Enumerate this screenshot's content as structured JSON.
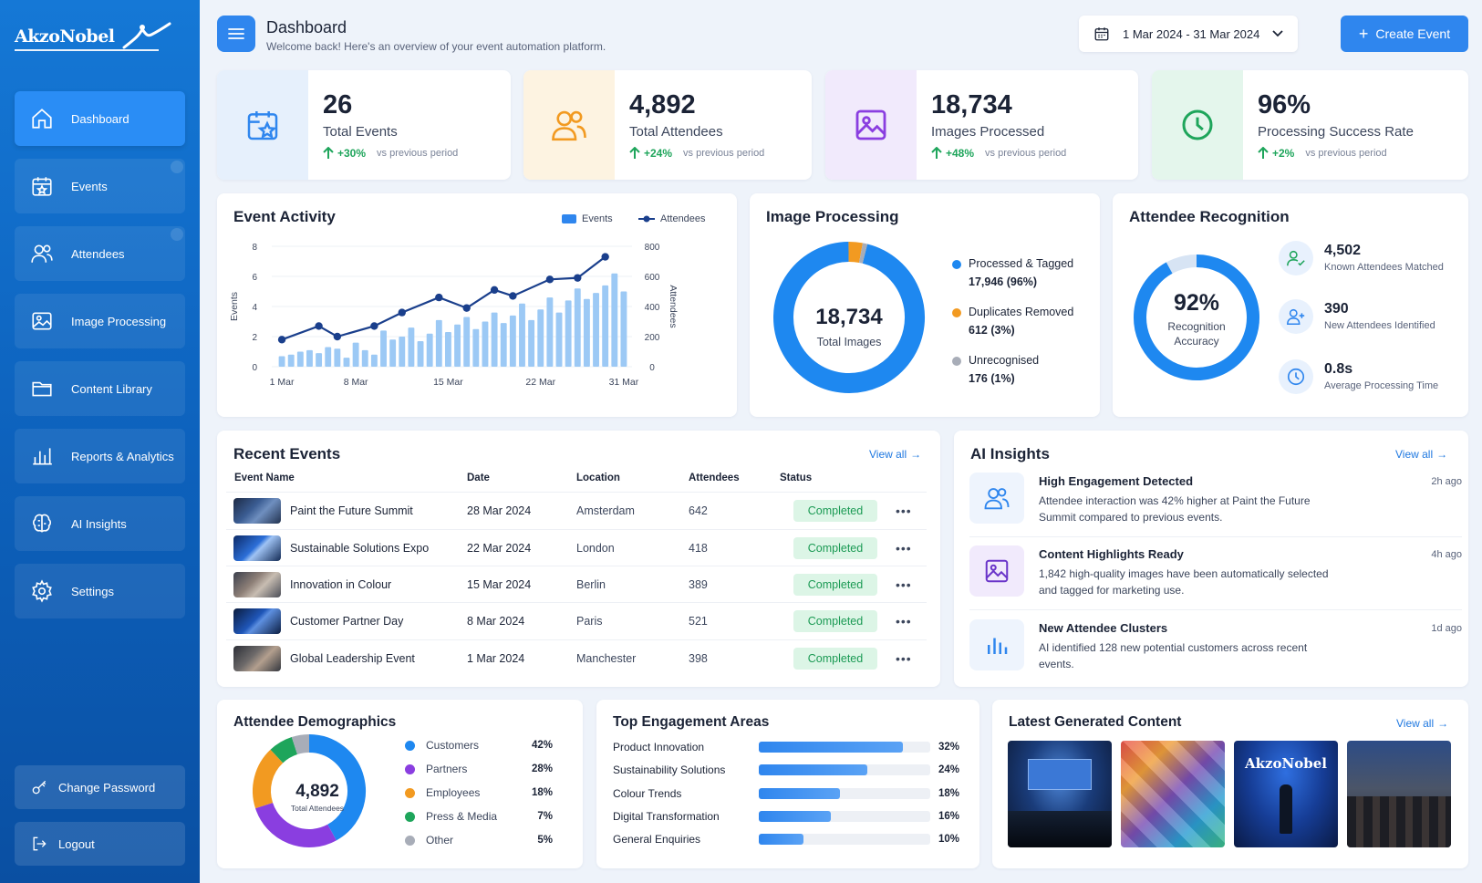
{
  "brand": {
    "name": "AkzoNobel"
  },
  "sidebar": {
    "items": [
      {
        "label": "Dashboard",
        "icon": "home-icon",
        "active": true
      },
      {
        "label": "Events",
        "icon": "calendar-star-icon"
      },
      {
        "label": "Attendees",
        "icon": "users-icon"
      },
      {
        "label": "Image Processing",
        "icon": "image-icon"
      },
      {
        "label": "Content Library",
        "icon": "folder-icon"
      },
      {
        "label": "Reports & Analytics",
        "icon": "bar-chart-icon"
      },
      {
        "label": "AI Insights",
        "icon": "brain-icon"
      },
      {
        "label": "Settings",
        "icon": "gear-icon"
      }
    ],
    "change_password": "Change Password",
    "logout": "Logout"
  },
  "header": {
    "title": "Dashboard",
    "subtitle": "Welcome back! Here's an overview of your event automation platform.",
    "date_range": "1 Mar 2024 - 31 Mar 2024",
    "create_label": "Create Event"
  },
  "stats": [
    {
      "value": "26",
      "label": "Total Events",
      "change": "+30%",
      "compare": "vs previous period",
      "icon": "calendar-star-icon",
      "bg": "#e6f0fc",
      "color": "#2f86ee"
    },
    {
      "value": "4,892",
      "label": "Total Attendees",
      "change": "+24%",
      "compare": "vs previous period",
      "icon": "users-icon",
      "bg": "#fdf3e1",
      "color": "#f29a21"
    },
    {
      "value": "18,734",
      "label": "Images Processed",
      "change": "+48%",
      "compare": "vs previous period",
      "icon": "image-icon",
      "bg": "#f1eafc",
      "color": "#8a3ee0"
    },
    {
      "value": "96%",
      "label": "Processing Success Rate",
      "change": "+2%",
      "compare": "vs previous period",
      "icon": "clock-icon",
      "bg": "#e4f6ec",
      "color": "#1ea55b"
    }
  ],
  "event_activity": {
    "title": "Event Activity",
    "legend_events": "Events",
    "legend_attendees": "Attendees"
  },
  "chart_data": {
    "type": "bar",
    "title": "Event Activity",
    "xlabel": "",
    "ylabel": "Events",
    "y2label": "Attendees",
    "ylim": [
      0,
      8
    ],
    "y2lim": [
      0,
      800
    ],
    "yticks": [
      "0",
      "2",
      "4",
      "6",
      "8"
    ],
    "y2ticks": [
      "0",
      "200",
      "400",
      "600",
      "800"
    ],
    "xticks": [
      "1 Mar",
      "8 Mar",
      "15 Mar",
      "22 Mar",
      "31 Mar"
    ],
    "series": [
      {
        "name": "Events",
        "type": "bar",
        "color": "#9cc9f5",
        "values": [
          0.7,
          0.8,
          1.0,
          1.1,
          0.9,
          1.3,
          1.2,
          0.6,
          1.6,
          1.1,
          0.8,
          2.4,
          1.8,
          2.0,
          2.6,
          1.7,
          2.2,
          3.1,
          2.3,
          2.8,
          3.3,
          2.5,
          3.0,
          3.6,
          2.9,
          3.4,
          4.2,
          3.1,
          3.8,
          4.6,
          3.6,
          4.4,
          5.2,
          4.5,
          4.9,
          5.4,
          6.2,
          5.0
        ]
      },
      {
        "name": "Attendees",
        "type": "line",
        "color": "#1a3f8c",
        "x": [
          0,
          4,
          6,
          10,
          13,
          17,
          20,
          23,
          25,
          29,
          32,
          35
        ],
        "values": [
          180,
          270,
          200,
          270,
          360,
          460,
          390,
          510,
          470,
          580,
          590,
          730
        ]
      }
    ]
  },
  "image_processing": {
    "title": "Image Processing",
    "center_value": "18,734",
    "center_label": "Total Images",
    "slices": [
      {
        "label": "Processed & Tagged",
        "detail": "17,946 (96%)",
        "value": 96,
        "color": "#1e88f0"
      },
      {
        "label": "Duplicates Removed",
        "detail": "612 (3%)",
        "value": 3,
        "color": "#f29a21"
      },
      {
        "label": "Unrecognised",
        "detail": "176 (1%)",
        "value": 1,
        "color": "#a8adb8"
      }
    ]
  },
  "recognition": {
    "title": "Attendee Recognition",
    "accuracy": "92%",
    "accuracy_value": 92,
    "accuracy_label_1": "Recognition",
    "accuracy_label_2": "Accuracy",
    "items": [
      {
        "value": "4,502",
        "label": "Known Attendees Matched",
        "icon": "user-check-icon"
      },
      {
        "value": "390",
        "label": "New Attendees Identified",
        "icon": "user-plus-icon"
      },
      {
        "value": "0.8s",
        "label": "Average Processing Time",
        "icon": "clock-icon"
      }
    ]
  },
  "recent_events": {
    "title": "Recent Events",
    "view_all": "View all",
    "columns": [
      "Event Name",
      "Date",
      "Location",
      "Attendees",
      "Status"
    ],
    "rows": [
      {
        "name": "Paint the Future Summit",
        "date": "28 Mar 2024",
        "location": "Amsterdam",
        "attendees": "642",
        "status": "Completed"
      },
      {
        "name": "Sustainable Solutions Expo",
        "date": "22 Mar 2024",
        "location": "London",
        "attendees": "418",
        "status": "Completed"
      },
      {
        "name": "Innovation in Colour",
        "date": "15 Mar 2024",
        "location": "Berlin",
        "attendees": "389",
        "status": "Completed"
      },
      {
        "name": "Customer Partner Day",
        "date": "8 Mar 2024",
        "location": "Paris",
        "attendees": "521",
        "status": "Completed"
      },
      {
        "name": "Global Leadership Event",
        "date": "1 Mar 2024",
        "location": "Manchester",
        "attendees": "398",
        "status": "Completed"
      }
    ]
  },
  "ai_insights": {
    "title": "AI Insights",
    "view_all": "View all",
    "items": [
      {
        "title": "High Engagement Detected",
        "text": "Attendee interaction was 42% higher at Paint the Future Summit compared to previous events.",
        "time": "2h ago",
        "icon": "users-icon"
      },
      {
        "title": "Content Highlights Ready",
        "text": "1,842 high-quality images have been automatically selected and tagged for marketing use.",
        "time": "4h ago",
        "icon": "image-icon"
      },
      {
        "title": "New Attendee Clusters",
        "text": "AI identified 128 new potential customers across recent events.",
        "time": "1d ago",
        "icon": "bar-chart-icon"
      }
    ]
  },
  "demographics": {
    "title": "Attendee Demographics",
    "center_value": "4,892",
    "center_label": "Total Attendees",
    "items": [
      {
        "label": "Customers",
        "pct": "42%",
        "value": 42,
        "color": "#1e88f0"
      },
      {
        "label": "Partners",
        "pct": "28%",
        "value": 28,
        "color": "#8a3ee0"
      },
      {
        "label": "Employees",
        "pct": "18%",
        "value": 18,
        "color": "#f29a21"
      },
      {
        "label": "Press & Media",
        "pct": "7%",
        "value": 7,
        "color": "#1ea55b"
      },
      {
        "label": "Other",
        "pct": "5%",
        "value": 5,
        "color": "#a8adb8"
      }
    ]
  },
  "engagement": {
    "title": "Top Engagement Areas",
    "items": [
      {
        "label": "Product Innovation",
        "pct": "32%",
        "value": 32
      },
      {
        "label": "Sustainability Solutions",
        "pct": "24%",
        "value": 24
      },
      {
        "label": "Colour Trends",
        "pct": "18%",
        "value": 18
      },
      {
        "label": "Digital Transformation",
        "pct": "16%",
        "value": 16
      },
      {
        "label": "General Enquiries",
        "pct": "10%",
        "value": 10
      }
    ]
  },
  "latest_content": {
    "title": "Latest Generated Content",
    "view_all": "View all",
    "logo_text": "AkzoNobel"
  }
}
